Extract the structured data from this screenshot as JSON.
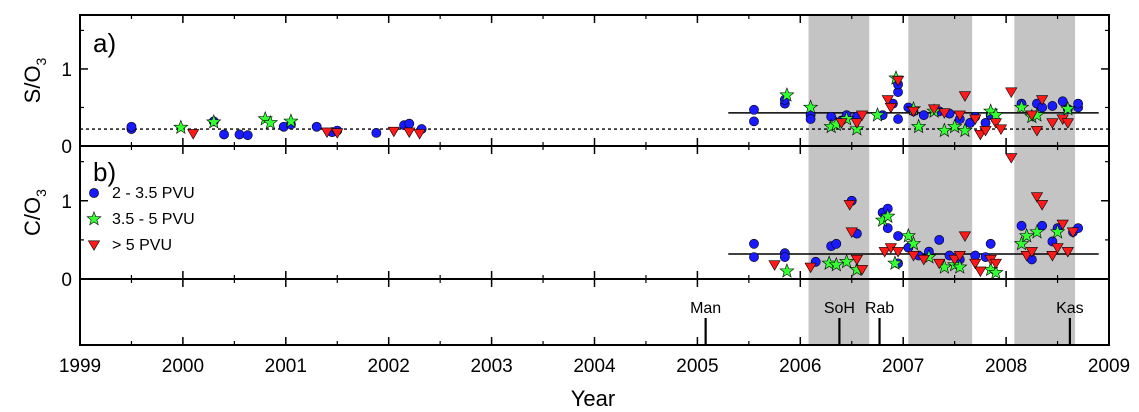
{
  "colors": {
    "blue": "#1a1aff",
    "green": "#33ff33",
    "red": "#ff1a1a",
    "shade": "#c4c4c4",
    "axis": "#000000"
  },
  "chart_data": {
    "type": "scatter",
    "xlabel": "Year",
    "xlim": [
      1999,
      2009
    ],
    "x_ticks": [
      "1999",
      "2000",
      "2001",
      "2002",
      "2003",
      "2004",
      "2005",
      "2006",
      "2007",
      "2008",
      "2009"
    ],
    "shaded_periods": [
      [
        2006.08,
        2006.67
      ],
      [
        2007.05,
        2007.67
      ],
      [
        2008.08,
        2008.67
      ]
    ],
    "legend": {
      "placement": "top-left of panel b",
      "entries": [
        {
          "label": "2 - 3.5 PVU",
          "symbol": "circle",
          "color": "blue"
        },
        {
          "label": "3.5 - 5 PVU",
          "symbol": "star",
          "color": "green"
        },
        {
          "label": "> 5 PVU",
          "symbol": "triangle-down",
          "color": "red"
        }
      ]
    },
    "panels": [
      {
        "id": "a",
        "label": "a)",
        "ylabel_main": "S/O",
        "ylabel_sub": "3",
        "ylim": [
          0,
          1.7
        ],
        "y_ticks": [
          0,
          1
        ],
        "y_tick_labels": [
          "0",
          "1"
        ],
        "dotted_line": {
          "y": 0.22
        },
        "trend_line": {
          "x": [
            2005.3,
            2008.9
          ],
          "y": 0.43
        },
        "series": [
          {
            "name": "2 - 3.5 PVU",
            "symbol": "circle",
            "color": "blue",
            "points": [
              [
                1999.5,
                0.22
              ],
              [
                1999.5,
                0.25
              ],
              [
                2000.3,
                0.32
              ],
              [
                2000.4,
                0.15
              ],
              [
                2000.55,
                0.15
              ],
              [
                2000.63,
                0.14
              ],
              [
                2000.98,
                0.25
              ],
              [
                2001.05,
                0.28
              ],
              [
                2001.3,
                0.25
              ],
              [
                2001.45,
                0.18
              ],
              [
                2001.5,
                0.2
              ],
              [
                2001.88,
                0.17
              ],
              [
                2002.15,
                0.27
              ],
              [
                2002.2,
                0.29
              ],
              [
                2002.32,
                0.22
              ],
              [
                2005.55,
                0.47
              ],
              [
                2005.55,
                0.32
              ],
              [
                2005.85,
                0.55
              ],
              [
                2005.85,
                0.6
              ],
              [
                2006.1,
                0.4
              ],
              [
                2006.1,
                0.35
              ],
              [
                2006.3,
                0.38
              ],
              [
                2006.4,
                0.33
              ],
              [
                2006.45,
                0.4
              ],
              [
                2006.55,
                0.38
              ],
              [
                2006.8,
                0.4
              ],
              [
                2006.9,
                0.55
              ],
              [
                2006.95,
                0.7
              ],
              [
                2006.95,
                0.8
              ],
              [
                2006.95,
                0.35
              ],
              [
                2007.05,
                0.5
              ],
              [
                2007.1,
                0.45
              ],
              [
                2007.2,
                0.4
              ],
              [
                2007.35,
                0.45
              ],
              [
                2007.45,
                0.42
              ],
              [
                2007.55,
                0.35
              ],
              [
                2007.65,
                0.3
              ],
              [
                2007.7,
                0.38
              ],
              [
                2007.8,
                0.3
              ],
              [
                2007.85,
                0.4
              ],
              [
                2008.15,
                0.55
              ],
              [
                2008.3,
                0.55
              ],
              [
                2008.35,
                0.5
              ],
              [
                2008.45,
                0.52
              ],
              [
                2008.55,
                0.58
              ],
              [
                2008.6,
                0.48
              ],
              [
                2008.7,
                0.5
              ],
              [
                2008.7,
                0.55
              ]
            ]
          },
          {
            "name": "3.5 - 5 PVU",
            "symbol": "star",
            "color": "green",
            "points": [
              [
                1999.98,
                0.24
              ],
              [
                2000.3,
                0.31
              ],
              [
                2000.8,
                0.35
              ],
              [
                2000.85,
                0.3
              ],
              [
                2001.05,
                0.32
              ],
              [
                2005.87,
                0.66
              ],
              [
                2006.1,
                0.5
              ],
              [
                2006.3,
                0.25
              ],
              [
                2006.35,
                0.28
              ],
              [
                2006.45,
                0.35
              ],
              [
                2006.55,
                0.22
              ],
              [
                2006.75,
                0.4
              ],
              [
                2006.93,
                0.88
              ],
              [
                2007.1,
                0.48
              ],
              [
                2007.15,
                0.25
              ],
              [
                2007.3,
                0.45
              ],
              [
                2007.4,
                0.2
              ],
              [
                2007.5,
                0.25
              ],
              [
                2007.6,
                0.2
              ],
              [
                2007.85,
                0.45
              ],
              [
                2007.9,
                0.4
              ],
              [
                2008.15,
                0.5
              ],
              [
                2008.25,
                0.38
              ],
              [
                2008.3,
                0.4
              ],
              [
                2008.6,
                0.48
              ]
            ]
          },
          {
            "name": "> 5 PVU",
            "symbol": "triangle-down",
            "color": "red",
            "points": [
              [
                2000.1,
                0.16
              ],
              [
                2001.4,
                0.18
              ],
              [
                2001.5,
                0.17
              ],
              [
                2002.05,
                0.19
              ],
              [
                2002.2,
                0.18
              ],
              [
                2002.3,
                0.16
              ],
              [
                2006.4,
                0.3
              ],
              [
                2006.55,
                0.3
              ],
              [
                2006.6,
                0.4
              ],
              [
                2006.85,
                0.6
              ],
              [
                2006.88,
                0.5
              ],
              [
                2006.95,
                0.85
              ],
              [
                2007.1,
                0.45
              ],
              [
                2007.3,
                0.48
              ],
              [
                2007.4,
                0.43
              ],
              [
                2007.55,
                0.4
              ],
              [
                2007.6,
                0.65
              ],
              [
                2007.7,
                0.35
              ],
              [
                2007.75,
                0.15
              ],
              [
                2007.8,
                0.2
              ],
              [
                2007.9,
                0.3
              ],
              [
                2007.95,
                0.22
              ],
              [
                2008.05,
                0.7
              ],
              [
                2008.25,
                0.4
              ],
              [
                2008.3,
                0.2
              ],
              [
                2008.35,
                0.6
              ],
              [
                2008.45,
                0.3
              ],
              [
                2008.55,
                0.35
              ],
              [
                2008.6,
                0.3
              ]
            ]
          }
        ]
      },
      {
        "id": "b",
        "label": "b)",
        "ylabel_main": "C/O",
        "ylabel_sub": "3",
        "ylim": [
          0,
          1.7
        ],
        "y_ticks": [
          0,
          1
        ],
        "y_tick_labels": [
          "0",
          "1"
        ],
        "trend_line": {
          "x": [
            2005.3,
            2008.9
          ],
          "y": 0.32
        },
        "series": [
          {
            "name": "2 - 3.5 PVU",
            "symbol": "circle",
            "color": "blue",
            "points": [
              [
                2005.55,
                0.45
              ],
              [
                2005.55,
                0.28
              ],
              [
                2005.85,
                0.33
              ],
              [
                2005.85,
                0.28
              ],
              [
                2006.15,
                0.22
              ],
              [
                2006.3,
                0.42
              ],
              [
                2006.35,
                0.45
              ],
              [
                2006.5,
                1.0
              ],
              [
                2006.55,
                0.58
              ],
              [
                2006.8,
                0.85
              ],
              [
                2006.85,
                0.9
              ],
              [
                2006.85,
                0.65
              ],
              [
                2006.95,
                0.55
              ],
              [
                2006.95,
                0.2
              ],
              [
                2007.05,
                0.4
              ],
              [
                2007.15,
                0.3
              ],
              [
                2007.25,
                0.35
              ],
              [
                2007.35,
                0.5
              ],
              [
                2007.45,
                0.3
              ],
              [
                2007.55,
                0.25
              ],
              [
                2007.7,
                0.3
              ],
              [
                2007.8,
                0.28
              ],
              [
                2007.85,
                0.45
              ],
              [
                2008.15,
                0.68
              ],
              [
                2008.25,
                0.25
              ],
              [
                2008.35,
                0.68
              ],
              [
                2008.45,
                0.48
              ],
              [
                2008.5,
                0.65
              ],
              [
                2008.65,
                0.6
              ],
              [
                2008.7,
                0.65
              ]
            ]
          },
          {
            "name": "3.5 - 5 PVU",
            "symbol": "star",
            "color": "green",
            "points": [
              [
                2005.87,
                0.1
              ],
              [
                2006.28,
                0.2
              ],
              [
                2006.35,
                0.18
              ],
              [
                2006.45,
                0.22
              ],
              [
                2006.55,
                0.12
              ],
              [
                2006.8,
                0.75
              ],
              [
                2006.85,
                0.8
              ],
              [
                2006.92,
                0.2
              ],
              [
                2007.05,
                0.55
              ],
              [
                2007.1,
                0.45
              ],
              [
                2007.25,
                0.28
              ],
              [
                2007.4,
                0.15
              ],
              [
                2007.5,
                0.18
              ],
              [
                2007.55,
                0.15
              ],
              [
                2007.85,
                0.12
              ],
              [
                2007.9,
                0.08
              ],
              [
                2008.15,
                0.45
              ],
              [
                2008.2,
                0.55
              ],
              [
                2008.3,
                0.6
              ],
              [
                2008.5,
                0.6
              ]
            ]
          },
          {
            "name": "> 5 PVU",
            "symbol": "triangle-down",
            "color": "red",
            "points": [
              [
                2005.75,
                0.18
              ],
              [
                2006.1,
                0.15
              ],
              [
                2006.48,
                0.95
              ],
              [
                2006.5,
                0.6
              ],
              [
                2006.55,
                0.25
              ],
              [
                2006.6,
                0.12
              ],
              [
                2006.82,
                0.35
              ],
              [
                2006.88,
                0.4
              ],
              [
                2006.95,
                0.35
              ],
              [
                2007.1,
                0.3
              ],
              [
                2007.2,
                0.25
              ],
              [
                2007.35,
                0.2
              ],
              [
                2007.5,
                0.25
              ],
              [
                2007.55,
                0.3
              ],
              [
                2007.6,
                0.55
              ],
              [
                2007.7,
                0.2
              ],
              [
                2007.75,
                0.1
              ],
              [
                2007.85,
                0.25
              ],
              [
                2007.9,
                0.2
              ],
              [
                2008.05,
                1.55
              ],
              [
                2008.2,
                0.3
              ],
              [
                2008.25,
                0.35
              ],
              [
                2008.3,
                1.05
              ],
              [
                2008.35,
                0.95
              ],
              [
                2008.45,
                0.3
              ],
              [
                2008.5,
                0.4
              ],
              [
                2008.55,
                0.7
              ],
              [
                2008.6,
                0.35
              ],
              [
                2008.65,
                0.6
              ]
            ]
          }
        ]
      }
    ],
    "events": [
      {
        "label": "Man",
        "x": 2005.08
      },
      {
        "label": "SoH",
        "x": 2006.38
      },
      {
        "label": "Rab",
        "x": 2006.77
      },
      {
        "label": "Kas",
        "x": 2008.62
      }
    ]
  }
}
